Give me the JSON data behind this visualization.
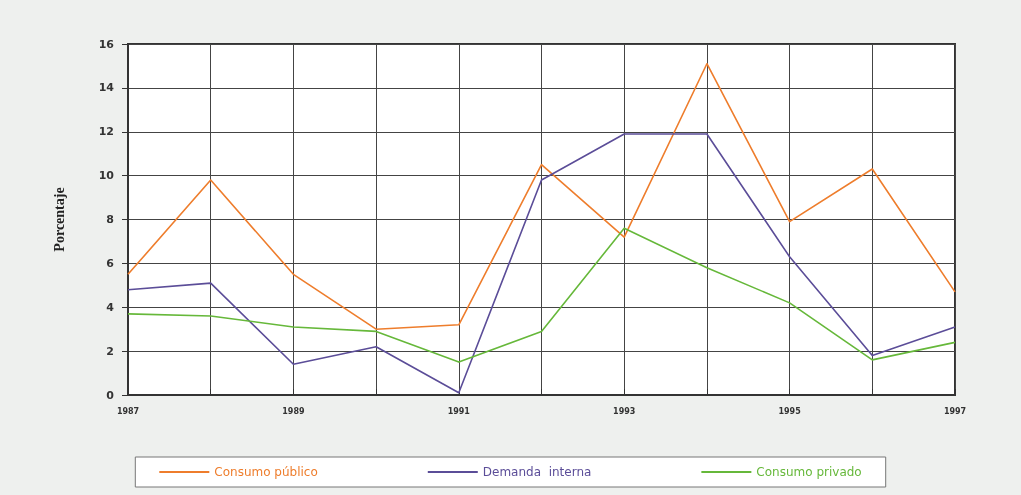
{
  "chart_data": {
    "type": "line",
    "ylabel": "Porcentaje",
    "x": [
      1987,
      1988,
      1989,
      1990,
      1991,
      1992,
      1993,
      1994,
      1995,
      1996,
      1997
    ],
    "series": [
      {
        "name": "Consumo público",
        "color": "#ee7d2c",
        "values": [
          5.5,
          9.8,
          5.5,
          3.0,
          3.2,
          10.5,
          7.2,
          15.1,
          7.9,
          10.3,
          4.7
        ]
      },
      {
        "name": "Demanda  interna",
        "color": "#5b4d98",
        "values": [
          4.8,
          5.1,
          1.4,
          2.2,
          0.1,
          9.8,
          11.9,
          11.9,
          6.3,
          1.8,
          3.1
        ]
      },
      {
        "name": "Consumo privado",
        "color": "#66b83a",
        "values": [
          3.7,
          3.6,
          3.1,
          2.9,
          1.5,
          2.9,
          7.6,
          5.8,
          4.2,
          1.6,
          2.4
        ]
      }
    ],
    "xlim": [
      1987,
      1997
    ],
    "xticks": [
      1987,
      {
        "value": 1988,
        "label": null
      },
      1989,
      {
        "value": 1990,
        "label": null
      },
      1991,
      {
        "value": 1992,
        "label": null
      },
      1993,
      {
        "value": 1994,
        "label": null
      },
      1995,
      {
        "value": 1996,
        "label": null
      },
      1997
    ],
    "ylim": [
      0,
      16
    ],
    "yticks": [
      0,
      2,
      4,
      6,
      8,
      10,
      12,
      14,
      16
    ],
    "grid": true,
    "legend": "bottom",
    "marker": "none",
    "line_style": "solid"
  }
}
